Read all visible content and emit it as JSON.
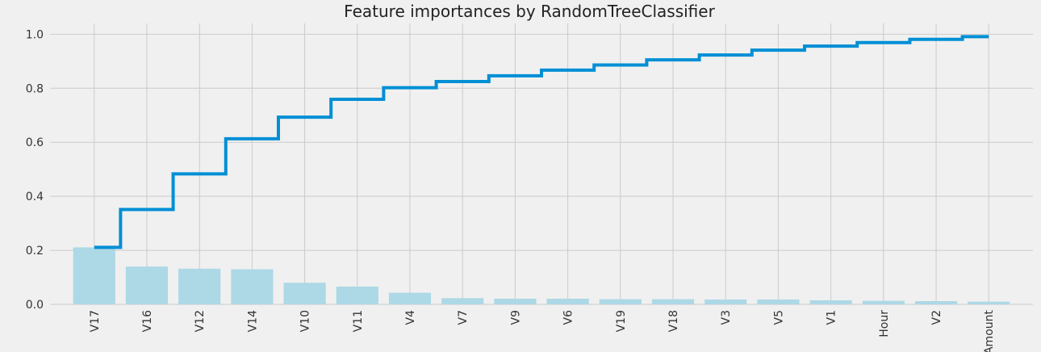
{
  "chart_data": {
    "type": "bar",
    "title": "Feature importances by RandomTreeClassifier",
    "xlabel": "",
    "ylabel": "",
    "categories": [
      "V17",
      "V16",
      "V12",
      "V14",
      "V10",
      "V11",
      "V4",
      "V7",
      "V9",
      "V6",
      "V19",
      "V18",
      "V3",
      "V5",
      "V1",
      "Hour",
      "V2",
      "Amount"
    ],
    "series": [
      {
        "kind": "bar",
        "values": [
          0.211,
          0.14,
          0.132,
          0.13,
          0.08,
          0.066,
          0.043,
          0.023,
          0.021,
          0.021,
          0.019,
          0.019,
          0.018,
          0.018,
          0.015,
          0.013,
          0.012,
          0.01
        ]
      },
      {
        "kind": "step",
        "values": [
          0.211,
          0.351,
          0.483,
          0.613,
          0.693,
          0.759,
          0.802,
          0.825,
          0.846,
          0.867,
          0.886,
          0.905,
          0.923,
          0.941,
          0.956,
          0.969,
          0.981,
          0.991
        ]
      }
    ],
    "ylim": [
      0,
      1.04
    ],
    "yticks": [
      "0.0",
      "0.2",
      "0.4",
      "0.6",
      "0.8",
      "1.0"
    ],
    "grid": true,
    "colors": {
      "bar": "#add8e6",
      "step": "#008fd5",
      "grid": "#cbcbcb",
      "background": "#f0f0f0"
    }
  }
}
